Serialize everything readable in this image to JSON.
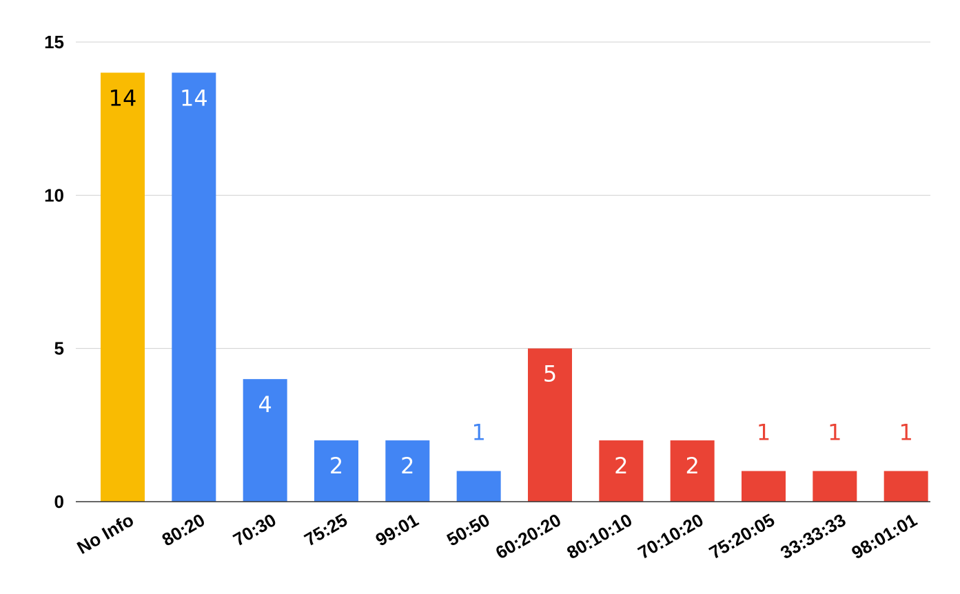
{
  "chart_data": {
    "type": "bar",
    "title": "",
    "xlabel": "",
    "ylabel": "",
    "ylim": [
      0,
      15
    ],
    "yticks": [
      0,
      5,
      10,
      15
    ],
    "grid": true,
    "legend": "none",
    "categories": [
      "No Info",
      "80:20",
      "70:30",
      "75:25",
      "99:01",
      "50:50",
      "60:20:20",
      "80:10:10",
      "70:10:20",
      "75:20:05",
      "33:33:33",
      "98:01:01"
    ],
    "values": [
      14,
      14,
      4,
      2,
      2,
      1,
      5,
      2,
      2,
      1,
      1,
      1
    ],
    "value_labels": [
      "14",
      "14",
      "4",
      "2",
      "2",
      "1",
      "5",
      "2",
      "2",
      "1",
      "1",
      "1"
    ],
    "bar_colors": [
      "#F9BB02",
      "#4285F4",
      "#4285F4",
      "#4285F4",
      "#4285F4",
      "#4285F4",
      "#EA4335",
      "#EA4335",
      "#EA4335",
      "#EA4335",
      "#EA4335",
      "#EA4335"
    ],
    "label_colors": [
      "#000000",
      "#ffffff",
      "#ffffff",
      "#ffffff",
      "#ffffff",
      "#4285F4",
      "#ffffff",
      "#ffffff",
      "#ffffff",
      "#EA4335",
      "#EA4335",
      "#EA4335"
    ],
    "label_inside": [
      true,
      true,
      true,
      true,
      true,
      false,
      true,
      true,
      true,
      false,
      false,
      false
    ]
  }
}
